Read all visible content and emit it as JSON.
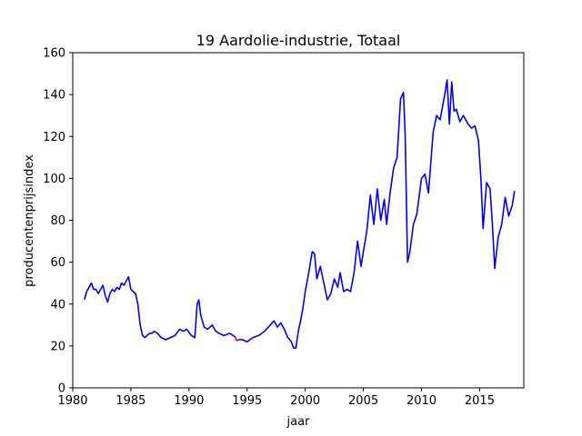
{
  "chart_data": {
    "type": "line",
    "title": "19 Aardolie-industrie, Totaal",
    "xlabel": "jaar",
    "ylabel": "producentenprijsindex",
    "xlim": [
      1980,
      2018.8
    ],
    "ylim": [
      0,
      160
    ],
    "xticks": [
      1980,
      1985,
      1990,
      1995,
      2000,
      2005,
      2010,
      2015
    ],
    "yticks": [
      0,
      20,
      40,
      60,
      80,
      100,
      120,
      140,
      160
    ],
    "grid": false,
    "series": [
      {
        "color": "#0000ff",
        "x": [
          1981.0,
          1981.2,
          1981.4,
          1981.6,
          1981.8,
          1982.0,
          1982.2,
          1982.4,
          1982.6,
          1982.8,
          1983.0,
          1983.2,
          1983.4,
          1983.6,
          1983.8,
          1984.0,
          1984.2,
          1984.4,
          1984.6,
          1984.8,
          1985.0,
          1985.2,
          1985.4,
          1985.6,
          1985.8,
          1986.0,
          1986.2,
          1986.4,
          1986.6,
          1986.8,
          1987.0,
          1987.3,
          1987.6,
          1988.0,
          1988.4,
          1988.8,
          1989.2,
          1989.5,
          1989.8,
          1990.2,
          1990.5,
          1990.7,
          1990.85,
          1991.0,
          1991.3,
          1991.6,
          1992.0,
          1992.3,
          1992.6,
          1993.0,
          1993.5,
          1993.8,
          1994.0
        ],
        "y": [
          42,
          46,
          48,
          50,
          47,
          47,
          45,
          47,
          49,
          44,
          41,
          45,
          47,
          46,
          48,
          47,
          50,
          49,
          51,
          53,
          47,
          46,
          45,
          40,
          30,
          25,
          24,
          25,
          26,
          26,
          27,
          26,
          24,
          23,
          24,
          25,
          28,
          27,
          28,
          25,
          24,
          40,
          42,
          35,
          29,
          28,
          30,
          27,
          26,
          25,
          26,
          25,
          24
        ]
      },
      {
        "color": "#ff0000",
        "x": [
          1994.0,
          1994.1,
          1994.25
        ],
        "y": [
          24,
          22.5,
          23
        ]
      },
      {
        "color": "#0000ff",
        "x": [
          1994.25,
          1994.6,
          1995.0,
          1995.5,
          1996.0,
          1996.5,
          1997.0,
          1997.3,
          1997.6,
          1997.9,
          1998.2,
          1998.5,
          1998.8,
          1999.0,
          1999.2,
          1999.4,
          1999.6,
          1999.8,
          2000.0,
          2000.3,
          2000.6,
          2000.8,
          2001.0,
          2001.3,
          2001.6,
          2001.9,
          2002.2,
          2002.5,
          2002.8,
          2003.0,
          2003.3,
          2003.6,
          2003.9,
          2004.2,
          2004.5,
          2004.8,
          2005.0,
          2005.3,
          2005.6,
          2005.9,
          2006.2,
          2006.5,
          2006.8,
          2007.0,
          2007.3,
          2007.6,
          2007.9,
          2008.2,
          2008.45,
          2008.6,
          2008.8,
          2009.0,
          2009.3,
          2009.6,
          2010.0,
          2010.3,
          2010.6,
          2011.0,
          2011.3,
          2011.6,
          2012.0,
          2012.2,
          2012.4,
          2012.6,
          2012.8,
          2013.0,
          2013.3,
          2013.6,
          2014.0,
          2014.3,
          2014.6,
          2014.9,
          2015.1,
          2015.3,
          2015.6,
          2015.9,
          2016.1,
          2016.3,
          2016.6,
          2016.9,
          2017.2,
          2017.5,
          2017.8,
          2018.0
        ],
        "y": [
          23,
          23,
          22,
          24,
          25,
          27,
          30,
          32,
          29,
          31,
          28,
          24,
          22,
          19,
          19,
          27,
          32,
          38,
          46,
          55,
          65,
          64,
          52,
          58,
          50,
          42,
          45,
          52,
          48,
          55,
          46,
          47,
          46,
          55,
          70,
          58,
          65,
          75,
          92,
          78,
          95,
          80,
          90,
          78,
          93,
          105,
          110,
          138,
          141,
          120,
          60,
          65,
          78,
          83,
          100,
          102,
          93,
          122,
          130,
          128,
          140,
          147,
          126,
          146,
          132,
          133,
          127,
          130,
          126,
          124,
          125,
          118,
          101,
          76,
          98,
          95,
          78,
          57,
          72,
          78,
          91,
          82,
          87,
          94
        ]
      }
    ]
  }
}
